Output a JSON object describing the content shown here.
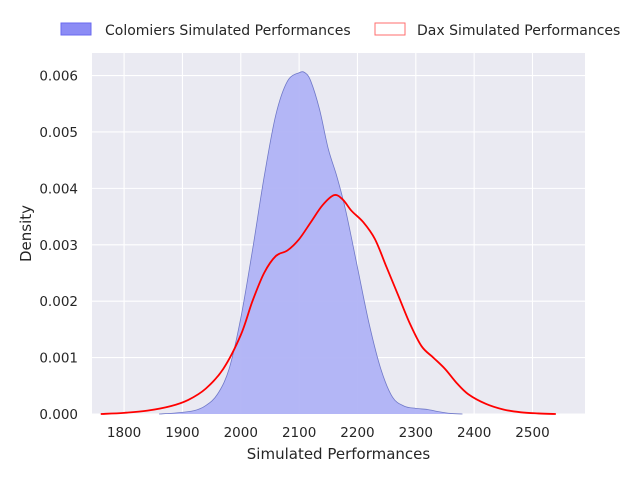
{
  "chart_data": {
    "type": "area",
    "xlabel": "Simulated Performances",
    "ylabel": "Density",
    "xlim": [
      1745,
      2590
    ],
    "ylim": [
      0,
      0.0064
    ],
    "x_ticks": [
      1800,
      1900,
      2000,
      2100,
      2200,
      2300,
      2400,
      2500
    ],
    "y_ticks": [
      0,
      0.001,
      0.002,
      0.003,
      0.004,
      0.005,
      0.006
    ],
    "x_tick_labels": [
      "1800",
      "1900",
      "2000",
      "2100",
      "2200",
      "2300",
      "2400",
      "2500"
    ],
    "y_tick_labels": [
      "0.000",
      "0.001",
      "0.002",
      "0.003",
      "0.004",
      "0.005",
      "0.006"
    ],
    "grid": true,
    "legend_position": "top",
    "series": [
      {
        "name": "Colomiers Simulated Performances",
        "style": "filled",
        "color": "#0000ff",
        "fill_color": "#b0b3f6",
        "points": [
          [
            1860,
            0.0
          ],
          [
            1890,
            2e-05
          ],
          [
            1920,
            6e-05
          ],
          [
            1940,
            0.00015
          ],
          [
            1960,
            0.00035
          ],
          [
            1980,
            0.0008
          ],
          [
            2000,
            0.0017
          ],
          [
            2020,
            0.0029
          ],
          [
            2040,
            0.0042
          ],
          [
            2060,
            0.0053
          ],
          [
            2080,
            0.0059
          ],
          [
            2100,
            0.00605
          ],
          [
            2110,
            0.00605
          ],
          [
            2120,
            0.0059
          ],
          [
            2135,
            0.0054
          ],
          [
            2150,
            0.0047
          ],
          [
            2165,
            0.0042
          ],
          [
            2180,
            0.0036
          ],
          [
            2200,
            0.0026
          ],
          [
            2220,
            0.0016
          ],
          [
            2240,
            0.0008
          ],
          [
            2260,
            0.0003
          ],
          [
            2280,
            0.00014
          ],
          [
            2300,
            0.0001
          ],
          [
            2320,
            8e-05
          ],
          [
            2340,
            4e-05
          ],
          [
            2360,
            1e-05
          ],
          [
            2380,
            0.0
          ]
        ]
      },
      {
        "name": "Dax Simulated Performances",
        "style": "line",
        "color": "#ff0000",
        "points": [
          [
            1760,
            0.0
          ],
          [
            1800,
            2e-05
          ],
          [
            1840,
            6e-05
          ],
          [
            1880,
            0.00014
          ],
          [
            1910,
            0.00025
          ],
          [
            1940,
            0.00045
          ],
          [
            1970,
            0.0008
          ],
          [
            2000,
            0.0014
          ],
          [
            2020,
            0.002
          ],
          [
            2040,
            0.0025
          ],
          [
            2060,
            0.0028
          ],
          [
            2080,
            0.0029
          ],
          [
            2100,
            0.0031
          ],
          [
            2120,
            0.0034
          ],
          [
            2140,
            0.0037
          ],
          [
            2160,
            0.00388
          ],
          [
            2175,
            0.0038
          ],
          [
            2190,
            0.0036
          ],
          [
            2210,
            0.0034
          ],
          [
            2230,
            0.0031
          ],
          [
            2250,
            0.0026
          ],
          [
            2270,
            0.0021
          ],
          [
            2290,
            0.0016
          ],
          [
            2310,
            0.0012
          ],
          [
            2330,
            0.001
          ],
          [
            2350,
            0.0008
          ],
          [
            2370,
            0.00055
          ],
          [
            2390,
            0.00035
          ],
          [
            2420,
            0.00018
          ],
          [
            2450,
            8e-05
          ],
          [
            2480,
            3e-05
          ],
          [
            2510,
            1e-05
          ],
          [
            2540,
            0.0
          ]
        ]
      }
    ]
  },
  "colors": {
    "plot_background": "#eaeaf2",
    "grid": "#ffffff",
    "text": "#262626"
  }
}
